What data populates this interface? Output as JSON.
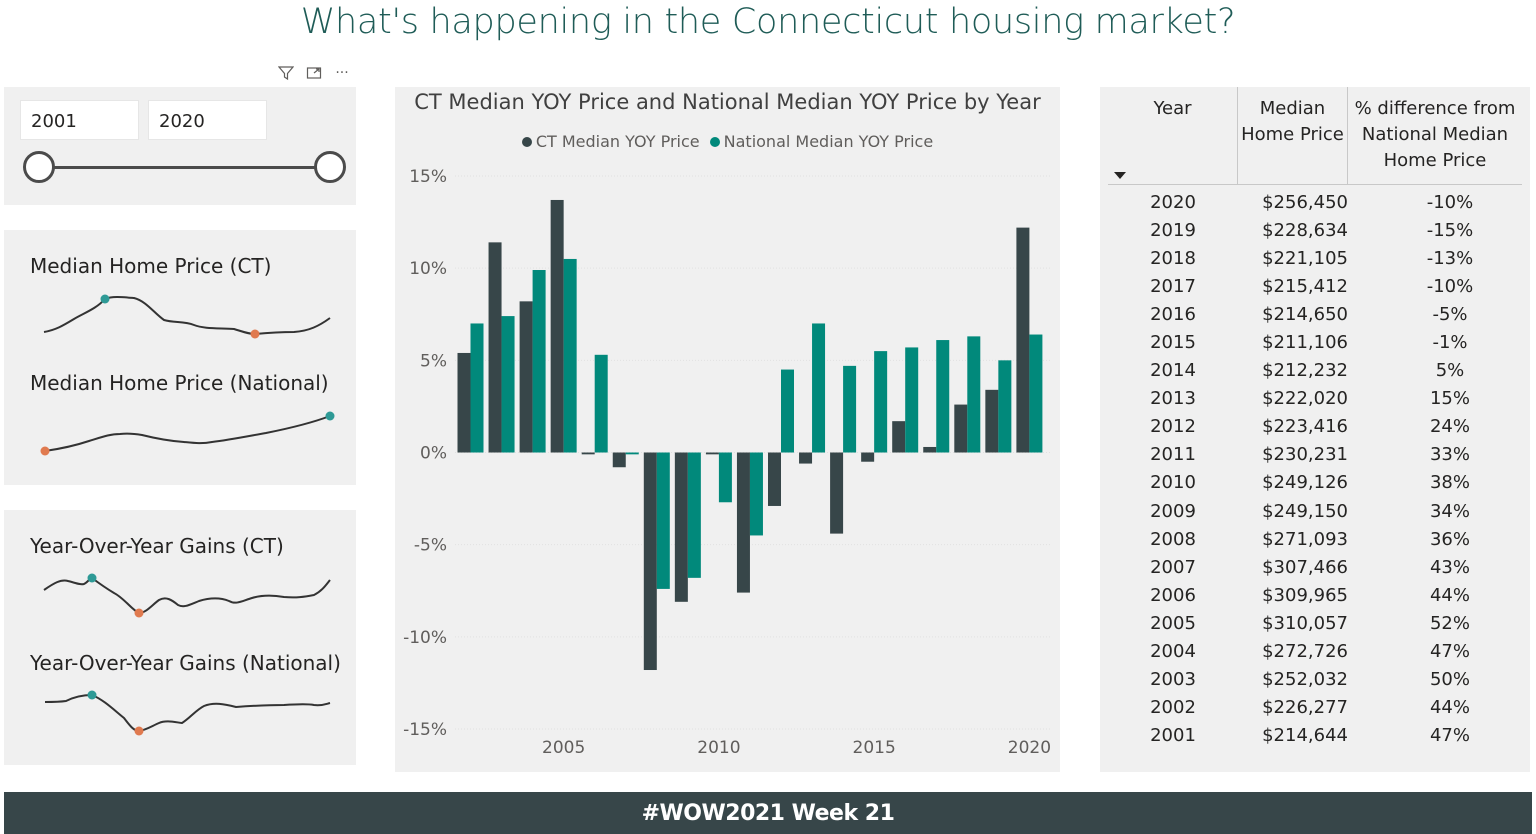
{
  "page_title": "What's happening in the Connecticut housing market?",
  "footer_text": "#WOW2021 Week 21",
  "toolbar": {
    "filter_icon": "filter-icon",
    "focus_icon": "focus-mode-icon",
    "more_icon": "more-options-icon",
    "more_glyph": "···"
  },
  "slicer": {
    "from_value": "2001",
    "to_value": "2020"
  },
  "sparklines": {
    "price_ct_label": "Median Home Price (CT)",
    "price_national_label": "Median Home Price (National)",
    "yoy_ct_label": "Year-Over-Year Gains (CT)",
    "yoy_national_label": "Year-Over-Year Gains (National)"
  },
  "colors": {
    "ct": "#374649",
    "national": "#01897b",
    "high_marker": "#2e9a96",
    "low_marker": "#e07a4f",
    "panel": "#f0f0f0"
  },
  "chart_data": {
    "type": "bar",
    "title": "CT Median YOY Price and National Median YOY Price by Year",
    "series": [
      {
        "name": "CT Median YOY Price",
        "values": [
          5.4,
          11.4,
          8.2,
          13.7,
          -0.1,
          -0.8,
          -11.8,
          -8.1,
          -0.1,
          -7.6,
          -2.9,
          -0.6,
          -4.4,
          -0.5,
          1.7,
          0.3,
          2.6,
          3.4,
          12.2
        ]
      },
      {
        "name": "National Median YOY Price",
        "values": [
          7.0,
          7.4,
          9.9,
          10.5,
          5.3,
          -0.1,
          -7.4,
          -6.8,
          -2.7,
          -4.5,
          4.5,
          7.0,
          4.7,
          5.5,
          5.7,
          6.1,
          6.3,
          5.0,
          6.4
        ]
      }
    ],
    "x": [
      2002,
      2003,
      2004,
      2005,
      2006,
      2007,
      2008,
      2009,
      2010,
      2011,
      2012,
      2013,
      2014,
      2015,
      2016,
      2017,
      2018,
      2019,
      2020
    ],
    "xticks": [
      "2005",
      "2010",
      "2015",
      "2020"
    ],
    "yticks": [
      "15%",
      "10%",
      "5%",
      "0%",
      "-5%",
      "-10%",
      "-15%"
    ],
    "ylim": [
      -15,
      15
    ],
    "xlabel": "",
    "ylabel": ""
  },
  "table": {
    "headers": {
      "year": "Year",
      "price": "Median Home Price",
      "diff": "% difference from National Median Home Price"
    },
    "rows": [
      {
        "year": "2020",
        "price": "$256,450",
        "diff": "-10%"
      },
      {
        "year": "2019",
        "price": "$228,634",
        "diff": "-15%"
      },
      {
        "year": "2018",
        "price": "$221,105",
        "diff": "-13%"
      },
      {
        "year": "2017",
        "price": "$215,412",
        "diff": "-10%"
      },
      {
        "year": "2016",
        "price": "$214,650",
        "diff": "-5%"
      },
      {
        "year": "2015",
        "price": "$211,106",
        "diff": "-1%"
      },
      {
        "year": "2014",
        "price": "$212,232",
        "diff": "5%"
      },
      {
        "year": "2013",
        "price": "$222,020",
        "diff": "15%"
      },
      {
        "year": "2012",
        "price": "$223,416",
        "diff": "24%"
      },
      {
        "year": "2011",
        "price": "$230,231",
        "diff": "33%"
      },
      {
        "year": "2010",
        "price": "$249,126",
        "diff": "38%"
      },
      {
        "year": "2009",
        "price": "$249,150",
        "diff": "34%"
      },
      {
        "year": "2008",
        "price": "$271,093",
        "diff": "36%"
      },
      {
        "year": "2007",
        "price": "$307,466",
        "diff": "43%"
      },
      {
        "year": "2006",
        "price": "$309,965",
        "diff": "44%"
      },
      {
        "year": "2005",
        "price": "$310,057",
        "diff": "52%"
      },
      {
        "year": "2004",
        "price": "$272,726",
        "diff": "47%"
      },
      {
        "year": "2003",
        "price": "$252,032",
        "diff": "50%"
      },
      {
        "year": "2002",
        "price": "$226,277",
        "diff": "44%"
      },
      {
        "year": "2001",
        "price": "$214,644",
        "diff": "47%"
      }
    ]
  }
}
